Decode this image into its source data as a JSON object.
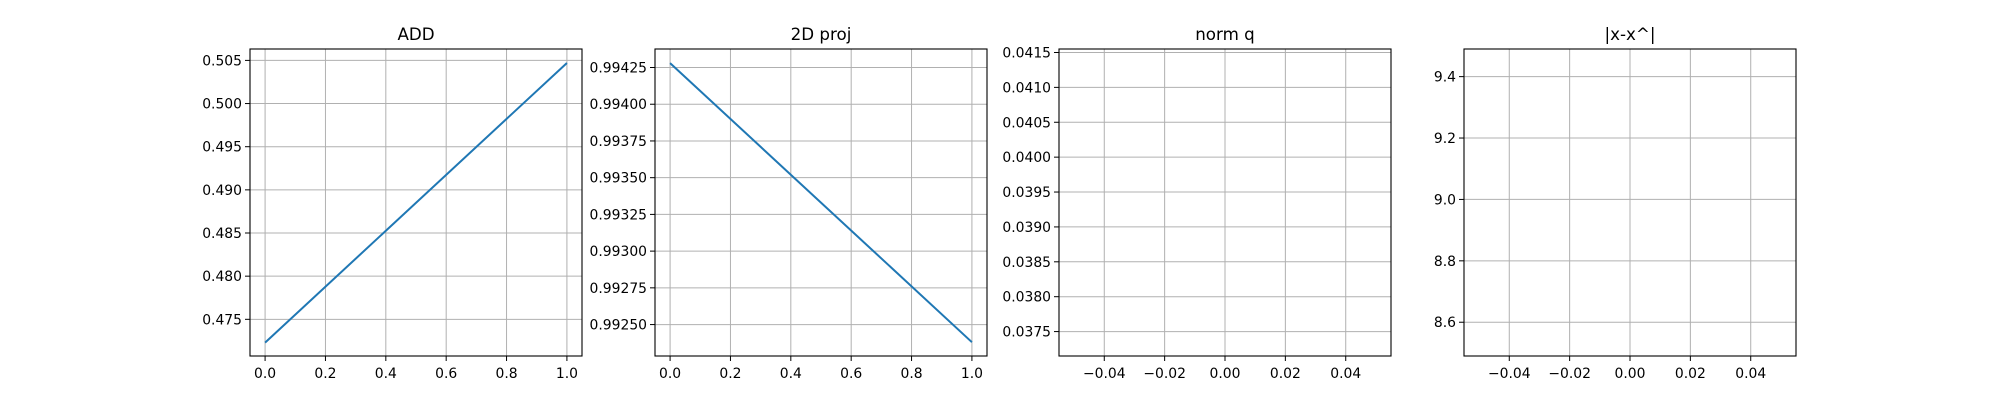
{
  "chart_data": [
    {
      "type": "line",
      "title": "ADD",
      "xlabel": "",
      "ylabel": "",
      "x": [
        0.0,
        1.0
      ],
      "series": [
        {
          "values": [
            0.4723,
            0.5047
          ]
        }
      ],
      "xlim": [
        -0.05,
        1.05
      ],
      "ylim": [
        0.47075,
        0.50632
      ],
      "xticks": [
        0.0,
        0.2,
        0.4,
        0.6,
        0.8,
        1.0
      ],
      "xtick_labels": [
        "0.0",
        "0.2",
        "0.4",
        "0.6",
        "0.8",
        "1.0"
      ],
      "yticks": [
        0.475,
        0.48,
        0.485,
        0.49,
        0.495,
        0.5,
        0.505
      ],
      "ytick_labels": [
        "0.475",
        "0.480",
        "0.485",
        "0.490",
        "0.495",
        "0.500",
        "0.505"
      ],
      "grid": true,
      "line_color": "#1f77b4"
    },
    {
      "type": "line",
      "title": "2D proj",
      "xlabel": "",
      "ylabel": "",
      "x": [
        0.0,
        1.0
      ],
      "series": [
        {
          "values": [
            0.99428,
            0.99238
          ]
        }
      ],
      "xlim": [
        -0.05,
        1.05
      ],
      "ylim": [
        0.992286,
        0.994376
      ],
      "xticks": [
        0.0,
        0.2,
        0.4,
        0.6,
        0.8,
        1.0
      ],
      "xtick_labels": [
        "0.0",
        "0.2",
        "0.4",
        "0.6",
        "0.8",
        "1.0"
      ],
      "yticks": [
        0.9925,
        0.99275,
        0.993,
        0.99325,
        0.9935,
        0.99375,
        0.994,
        0.99425
      ],
      "ytick_labels": [
        "0.99250",
        "0.99275",
        "0.99300",
        "0.99325",
        "0.99350",
        "0.99375",
        "0.99400",
        "0.99425"
      ],
      "grid": true,
      "line_color": "#1f77b4"
    },
    {
      "type": "line",
      "title": "norm q",
      "xlabel": "",
      "ylabel": "",
      "x": [],
      "series": [
        {
          "values": []
        }
      ],
      "xlim": [
        -0.055,
        0.055
      ],
      "ylim": [
        0.03715,
        0.04155
      ],
      "xticks": [
        -0.04,
        -0.02,
        0.0,
        0.02,
        0.04
      ],
      "xtick_labels": [
        "−0.04",
        "−0.02",
        "0.00",
        "0.02",
        "0.04"
      ],
      "yticks": [
        0.0375,
        0.038,
        0.0385,
        0.039,
        0.0395,
        0.04,
        0.0405,
        0.041,
        0.0415
      ],
      "ytick_labels": [
        "0.0375",
        "0.0380",
        "0.0385",
        "0.0390",
        "0.0395",
        "0.0400",
        "0.0405",
        "0.0410",
        "0.0415"
      ],
      "grid": true,
      "line_color": "#1f77b4"
    },
    {
      "type": "line",
      "title": "|x-x^|",
      "xlabel": "",
      "ylabel": "",
      "x": [],
      "series": [
        {
          "values": []
        }
      ],
      "xlim": [
        -0.055,
        0.055
      ],
      "ylim": [
        8.49,
        9.49
      ],
      "xticks": [
        -0.04,
        -0.02,
        0.0,
        0.02,
        0.04
      ],
      "xtick_labels": [
        "−0.04",
        "−0.02",
        "0.00",
        "0.02",
        "0.04"
      ],
      "yticks": [
        8.6,
        8.8,
        9.0,
        9.2,
        9.4
      ],
      "ytick_labels": [
        "8.6",
        "8.8",
        "9.0",
        "9.2",
        "9.4"
      ],
      "grid": true,
      "line_color": "#1f77b4"
    }
  ]
}
